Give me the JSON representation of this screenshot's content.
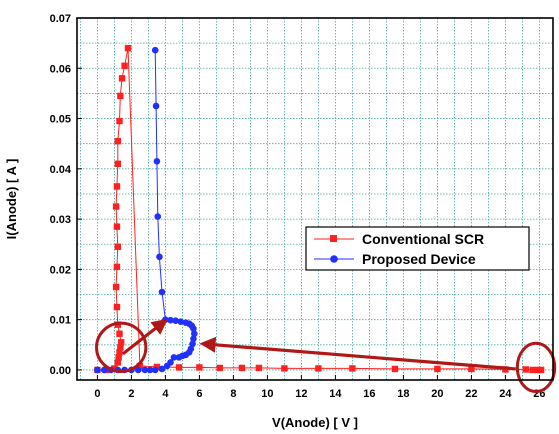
{
  "chart_data": {
    "type": "scatter",
    "title": "",
    "xlabel": "V(Anode) [ V ]",
    "ylabel": "I(Anode) [ A ]",
    "xlim": [
      -1.2,
      26.8
    ],
    "ylim": [
      -0.002,
      0.07
    ],
    "x_ticks": [
      0,
      2,
      4,
      6,
      8,
      10,
      12,
      14,
      16,
      18,
      20,
      22,
      24,
      26
    ],
    "x_tick_labels": [
      "0",
      "2",
      "4",
      "6",
      "8",
      "10",
      "12",
      "14",
      "16",
      "18",
      "20",
      "22",
      "24",
      "26"
    ],
    "y_ticks": [
      0.0,
      0.01,
      0.02,
      0.03,
      0.04,
      0.05,
      0.06,
      0.07
    ],
    "y_tick_labels": [
      "0.00",
      "0.01",
      "0.02",
      "0.03",
      "0.04",
      "0.05",
      "0.06",
      "0.07"
    ],
    "grid": true,
    "legend_position": "center-right",
    "series": [
      {
        "name": "Conventional SCR",
        "color": "#ff2020",
        "marker": "square",
        "x": [
          0.0,
          0.5,
          1.0,
          1.2,
          1.25,
          1.3,
          1.35,
          1.4,
          1.3,
          1.2,
          1.15,
          1.1,
          1.15,
          1.2,
          1.15,
          1.1,
          1.15,
          1.2,
          1.2,
          1.3,
          1.35,
          1.45,
          1.6,
          1.8,
          2.5,
          3.5,
          4.8,
          6.0,
          7.2,
          8.5,
          9.5,
          11.0,
          13.0,
          15.0,
          17.5,
          20.0,
          22.0,
          24.0,
          25.2,
          25.6,
          25.9,
          26.1
        ],
        "y": [
          0.0,
          0.0,
          0.0003,
          0.0015,
          0.0025,
          0.0035,
          0.0045,
          0.0055,
          0.0072,
          0.009,
          0.0125,
          0.0165,
          0.0205,
          0.0245,
          0.0285,
          0.0325,
          0.0365,
          0.041,
          0.0455,
          0.0495,
          0.0545,
          0.058,
          0.0605,
          0.064,
          0.0008,
          0.0006,
          0.0005,
          0.0005,
          0.0004,
          0.0004,
          0.0004,
          0.0003,
          0.0003,
          0.0003,
          0.0002,
          0.0002,
          0.0002,
          0.0001,
          0.0001,
          0.0,
          0.0,
          0.0
        ]
      },
      {
        "name": "Proposed Device",
        "color": "#2030ff",
        "marker": "circle",
        "x": [
          0.0,
          0.4,
          0.8,
          1.2,
          1.6,
          2.0,
          2.4,
          2.8,
          3.1,
          3.4,
          3.8,
          4.1,
          4.3,
          4.5,
          4.8,
          5.0,
          5.2,
          5.4,
          5.5,
          5.6,
          5.65,
          5.7,
          5.65,
          5.55,
          5.4,
          5.2,
          4.9,
          4.6,
          4.3,
          4.0,
          3.8,
          3.65,
          3.55,
          3.5,
          3.45,
          3.4
        ],
        "y": [
          0.0,
          0.0,
          0.0,
          0.0,
          0.0,
          0.0,
          0.0,
          0.0,
          0.0,
          0.0,
          0.0002,
          0.0008,
          0.0015,
          0.0025,
          0.0025,
          0.0028,
          0.003,
          0.0035,
          0.0042,
          0.0052,
          0.0062,
          0.0072,
          0.0082,
          0.0088,
          0.0092,
          0.0094,
          0.0096,
          0.0098,
          0.0099,
          0.01,
          0.0155,
          0.0225,
          0.0305,
          0.0415,
          0.0525,
          0.0636
        ]
      }
    ],
    "annotations": [
      {
        "kind": "ellipse",
        "color": "#b01818",
        "cx": 1.4,
        "cy": 0.0045,
        "rx": 1.45,
        "ry": 0.0048
      },
      {
        "kind": "ellipse",
        "color": "#b01818",
        "cx": 25.8,
        "cy": 0.0005,
        "rx": 1.1,
        "ry": 0.0048
      },
      {
        "kind": "arrow",
        "color": "#b01818",
        "from": [
          1.5,
          0.0032
        ],
        "to": [
          4.0,
          0.0098
        ]
      },
      {
        "kind": "arrow",
        "color": "#b01818",
        "from": [
          24.6,
          0.0002
        ],
        "to": [
          6.2,
          0.0052
        ]
      }
    ]
  }
}
